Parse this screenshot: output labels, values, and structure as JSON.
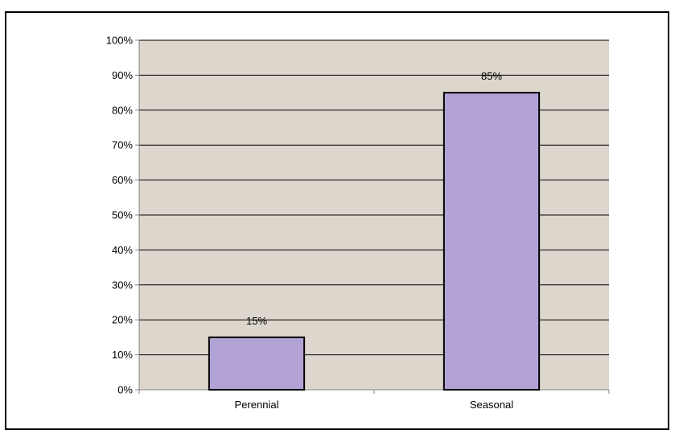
{
  "chart_data": {
    "type": "bar",
    "title": "",
    "xlabel": "",
    "ylabel": "",
    "categories": [
      "Perennial",
      "Seasonal"
    ],
    "values": [
      15,
      85
    ],
    "data_labels": [
      "15%",
      "85%"
    ],
    "ylim": [
      0,
      100
    ],
    "y_ticks": [
      0,
      10,
      20,
      30,
      40,
      50,
      60,
      70,
      80,
      90,
      100
    ],
    "y_tick_labels": [
      "0%",
      "10%",
      "20%",
      "30%",
      "40%",
      "50%",
      "60%",
      "70%",
      "80%",
      "90%",
      "100%"
    ],
    "grid": true,
    "legend": "none",
    "colors": {
      "bar_fill": "#b3a2d6",
      "bar_stroke": "#000000",
      "plot_background": "#dcd6cc",
      "gridline": "#000000",
      "axis": "#808080"
    }
  }
}
